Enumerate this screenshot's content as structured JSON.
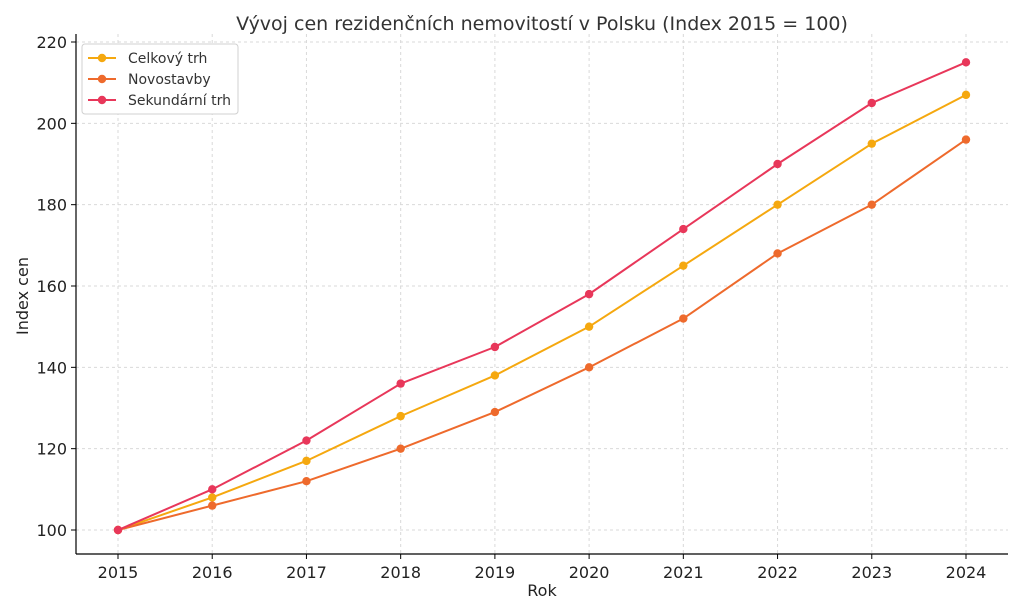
{
  "chart_data": {
    "type": "line",
    "title": "Vývoj cen rezidenčních nemovitostí v Polsku (Index 2015 = 100)",
    "xlabel": "Rok",
    "ylabel": "Index cen",
    "x": [
      "2015",
      "2016",
      "2017",
      "2018",
      "2019",
      "2020",
      "2021",
      "2022",
      "2023",
      "2024"
    ],
    "yticks": [
      "100",
      "120",
      "140",
      "160",
      "180",
      "200",
      "220"
    ],
    "ylim": [
      95,
      221
    ],
    "grid": true,
    "legend_position": "top-left",
    "series": [
      {
        "name": "Celkový trh",
        "color": "#F5A80F",
        "values": [
          100,
          108,
          117,
          128,
          138,
          150,
          165,
          180,
          195,
          207
        ]
      },
      {
        "name": "Novostavby",
        "color": "#EE6A2C",
        "values": [
          100,
          106,
          112,
          120,
          129,
          140,
          152,
          168,
          180,
          196
        ]
      },
      {
        "name": "Sekundární trh",
        "color": "#E8375A",
        "values": [
          100,
          110,
          122,
          136,
          145,
          158,
          174,
          190,
          205,
          215
        ]
      }
    ]
  }
}
